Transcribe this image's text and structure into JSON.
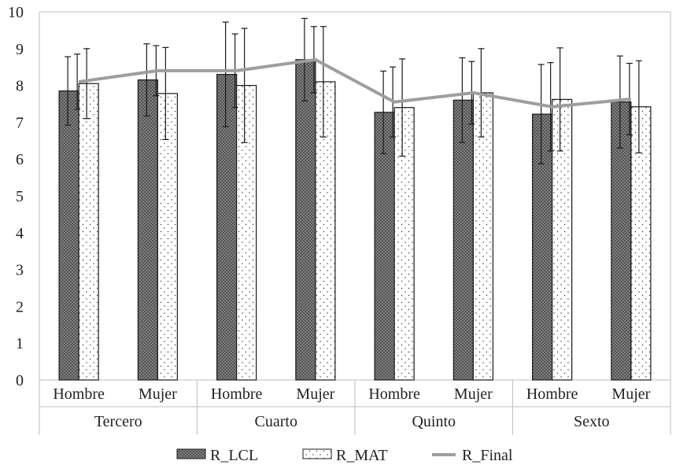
{
  "chart_data": {
    "type": "bar",
    "title": "",
    "xlabel": "",
    "ylabel": "",
    "ylim": [
      0,
      10
    ],
    "yticks": [
      "0",
      "1",
      "2",
      "3",
      "4",
      "5",
      "6",
      "7",
      "8",
      "9",
      "10"
    ],
    "grid": false,
    "legend_position": "bottom",
    "categories": [
      "Hombre",
      "Mujer",
      "Hombre",
      "Mujer",
      "Hombre",
      "Mujer",
      "Hombre",
      "Mujer"
    ],
    "groups": [
      {
        "label": "Tercero",
        "span": 2
      },
      {
        "label": "Cuarto",
        "span": 2
      },
      {
        "label": "Quinto",
        "span": 2
      },
      {
        "label": "Sexto",
        "span": 2
      }
    ],
    "series": [
      {
        "name": "R_LCL",
        "type": "bar",
        "pattern": "crosshatch",
        "values": [
          7.85,
          8.15,
          8.3,
          8.7,
          7.27,
          7.6,
          7.22,
          7.55
        ],
        "error": [
          0.93,
          0.98,
          1.42,
          1.12,
          1.12,
          1.15,
          1.35,
          1.25
        ]
      },
      {
        "name": "R_MAT",
        "type": "bar",
        "pattern": "dots",
        "values": [
          8.05,
          7.78,
          8.0,
          8.1,
          7.4,
          7.8,
          7.62,
          7.42
        ],
        "error": [
          0.95,
          1.25,
          1.55,
          1.5,
          1.32,
          1.2,
          1.4,
          1.25
        ]
      },
      {
        "name": "R_Final",
        "type": "line",
        "color": "#9e9e9e",
        "values": [
          8.1,
          8.4,
          8.4,
          8.7,
          7.55,
          7.8,
          7.42,
          7.63
        ],
        "error": [
          0.75,
          0.68,
          1.0,
          0.9,
          0.95,
          0.85,
          1.2,
          0.97
        ]
      }
    ]
  }
}
